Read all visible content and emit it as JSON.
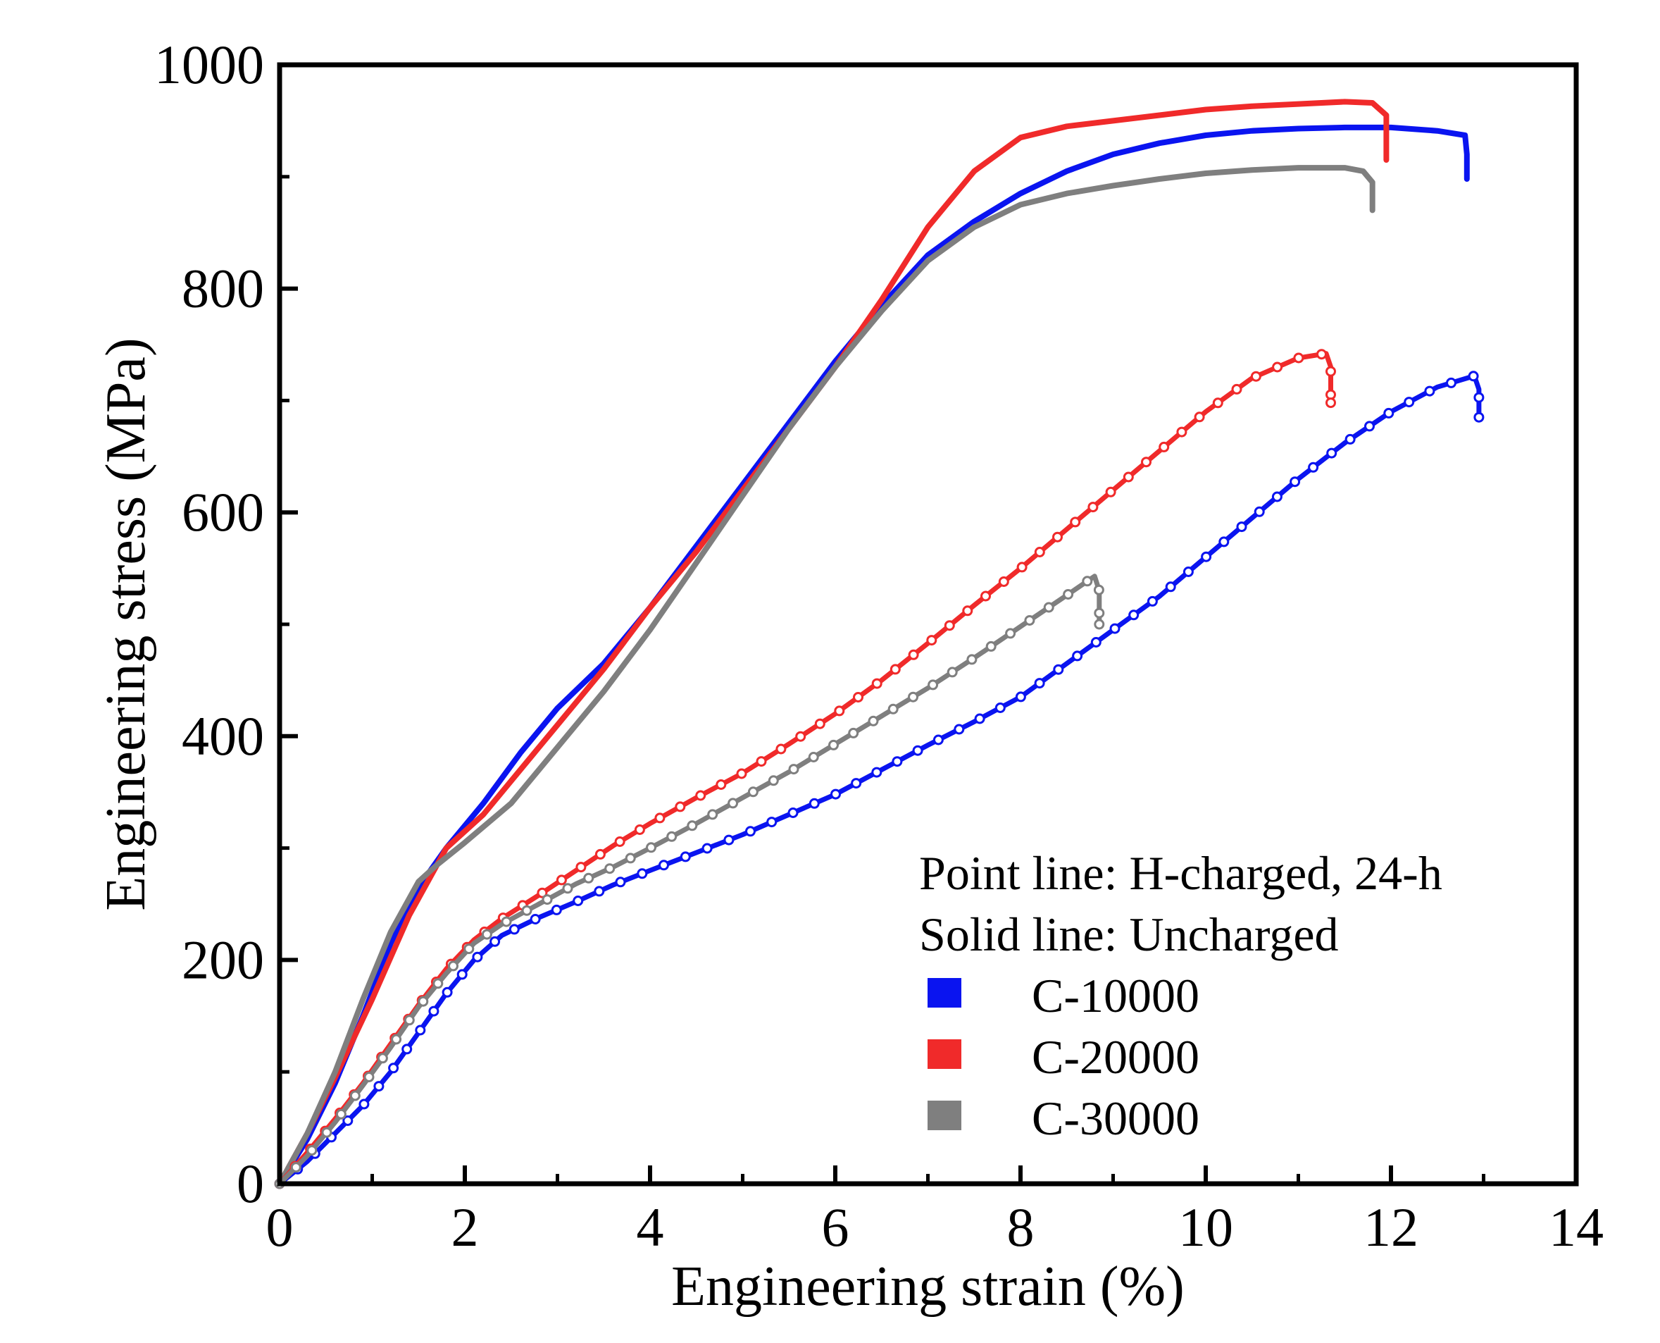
{
  "chart_data": {
    "type": "line",
    "title": "",
    "xlabel": "Engineering strain  (%)",
    "ylabel": "Engineering stress (MPa)",
    "xlim": [
      0,
      14
    ],
    "ylim": [
      0,
      1000
    ],
    "xticks": [
      0,
      2,
      4,
      6,
      8,
      10,
      12,
      14
    ],
    "yticks": [
      0,
      200,
      400,
      600,
      800,
      1000
    ],
    "xtick_labels": [
      "0",
      "2",
      "4",
      "6",
      "8",
      "10",
      "12",
      "14"
    ],
    "ytick_labels": [
      "0",
      "200",
      "400",
      "600",
      "800",
      "1000"
    ],
    "grid": false,
    "legend": {
      "position": "bottom-right",
      "notes": [
        "Point line: H-charged, 24-h",
        "Solid line: Uncharged"
      ],
      "entries": [
        {
          "label": "C-10000",
          "color": "#0a14f0"
        },
        {
          "label": "C-20000",
          "color": "#f02a2a"
        },
        {
          "label": "C-30000",
          "color": "#7f7f7f"
        }
      ]
    },
    "series": [
      {
        "name": "C-10000 uncharged",
        "style": "solid",
        "color": "#0a14f0",
        "x": [
          0,
          0.3,
          0.6,
          0.9,
          1.2,
          1.5,
          1.8,
          2.2,
          2.6,
          3.0,
          3.5,
          4.0,
          4.5,
          5.0,
          5.5,
          6.0,
          6.5,
          7.0,
          7.5,
          8.0,
          8.5,
          9.0,
          9.5,
          10.0,
          10.5,
          11.0,
          11.5,
          12.0,
          12.5,
          12.8,
          12.82,
          12.82
        ],
        "y": [
          0,
          40,
          90,
          150,
          215,
          265,
          300,
          340,
          385,
          425,
          465,
          515,
          570,
          625,
          680,
          735,
          785,
          830,
          860,
          885,
          905,
          920,
          930,
          937,
          941,
          943,
          944,
          944,
          941,
          937,
          920,
          898
        ]
      },
      {
        "name": "C-20000 uncharged",
        "style": "solid",
        "color": "#f02a2a",
        "x": [
          0,
          0.3,
          0.6,
          1.0,
          1.4,
          1.8,
          2.2,
          2.6,
          3.0,
          3.5,
          4.0,
          4.5,
          5.0,
          5.5,
          6.0,
          6.5,
          7.0,
          7.5,
          8.0,
          8.5,
          9.0,
          9.5,
          10.0,
          10.5,
          11.0,
          11.5,
          11.8,
          11.95,
          11.95
        ],
        "y": [
          0,
          45,
          95,
          165,
          240,
          300,
          330,
          370,
          410,
          460,
          515,
          565,
          620,
          675,
          730,
          790,
          855,
          905,
          935,
          945,
          950,
          955,
          960,
          963,
          965,
          967,
          966,
          955,
          915
        ]
      },
      {
        "name": "C-30000 uncharged",
        "style": "solid",
        "color": "#7f7f7f",
        "x": [
          0,
          0.3,
          0.6,
          0.9,
          1.2,
          1.5,
          1.7,
          2.0,
          2.5,
          3.0,
          3.5,
          4.0,
          4.5,
          5.0,
          5.5,
          6.0,
          6.5,
          7.0,
          7.5,
          8.0,
          8.5,
          9.0,
          9.5,
          10.0,
          10.5,
          11.0,
          11.5,
          11.7,
          11.8,
          11.8
        ],
        "y": [
          0,
          45,
          100,
          165,
          225,
          270,
          285,
          305,
          340,
          390,
          440,
          495,
          555,
          615,
          675,
          730,
          780,
          825,
          855,
          875,
          885,
          892,
          898,
          903,
          906,
          908,
          908,
          905,
          895,
          870
        ]
      },
      {
        "name": "C-10000 H-charged",
        "style": "points",
        "color": "#0a14f0",
        "x": [
          0,
          0.3,
          0.6,
          0.9,
          1.2,
          1.5,
          1.8,
          2.1,
          2.4,
          2.8,
          3.2,
          3.6,
          4.0,
          4.5,
          5.0,
          5.5,
          6.0,
          6.5,
          7.0,
          7.5,
          8.0,
          8.5,
          9.0,
          9.5,
          10.0,
          10.5,
          11.0,
          11.5,
          12.0,
          12.5,
          12.9,
          12.95,
          12.95
        ],
        "y": [
          0,
          20,
          45,
          70,
          100,
          135,
          170,
          200,
          222,
          238,
          252,
          267,
          280,
          296,
          312,
          330,
          348,
          370,
          392,
          413,
          435,
          465,
          495,
          525,
          560,
          595,
          630,
          662,
          690,
          712,
          722,
          710,
          685
        ]
      },
      {
        "name": "C-20000 H-charged",
        "style": "points",
        "color": "#f02a2a",
        "x": [
          0,
          0.3,
          0.6,
          0.9,
          1.2,
          1.5,
          1.8,
          2.1,
          2.4,
          2.8,
          3.2,
          3.6,
          4.0,
          4.5,
          5.0,
          5.5,
          6.0,
          6.5,
          7.0,
          7.5,
          8.0,
          8.5,
          9.0,
          9.5,
          10.0,
          10.5,
          11.0,
          11.3,
          11.35,
          11.35
        ],
        "y": [
          0,
          28,
          58,
          90,
          125,
          160,
          192,
          218,
          237,
          258,
          280,
          302,
          322,
          345,
          367,
          393,
          420,
          450,
          483,
          517,
          550,
          585,
          620,
          655,
          690,
          720,
          738,
          742,
          730,
          698
        ]
      },
      {
        "name": "C-30000 H-charged",
        "style": "points",
        "color": "#7f7f7f",
        "x": [
          0,
          0.3,
          0.6,
          0.9,
          1.2,
          1.5,
          1.8,
          2.1,
          2.4,
          2.8,
          3.2,
          3.6,
          4.0,
          4.5,
          5.0,
          5.5,
          6.0,
          6.5,
          7.0,
          7.5,
          8.0,
          8.5,
          8.8,
          8.85,
          8.85
        ],
        "y": [
          0,
          25,
          55,
          88,
          122,
          158,
          188,
          215,
          232,
          250,
          268,
          283,
          300,
          322,
          345,
          368,
          393,
          418,
          443,
          470,
          498,
          526,
          543,
          530,
          500
        ]
      }
    ]
  }
}
